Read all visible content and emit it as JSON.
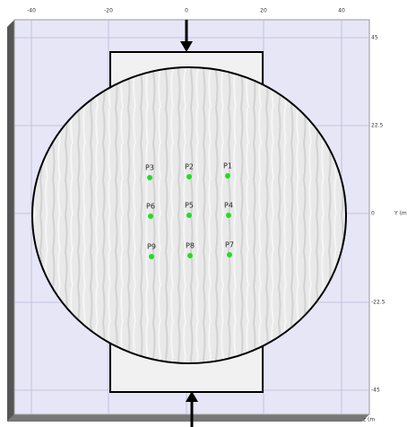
{
  "top_axis_labels": [
    "-40",
    "-20",
    "0",
    "20",
    "40"
  ],
  "right_axis_labels": [
    "45",
    "22.5",
    "0",
    "-22.5",
    "-45"
  ],
  "right_axis_title": "Y (m",
  "depth_axis_title": "z (m",
  "points": [
    {
      "label": "P1"
    },
    {
      "label": "P2"
    },
    {
      "label": "P3"
    },
    {
      "label": "P4"
    },
    {
      "label": "P5"
    },
    {
      "label": "P6"
    },
    {
      "label": "P7"
    },
    {
      "label": "P8"
    },
    {
      "label": "P9"
    }
  ]
}
